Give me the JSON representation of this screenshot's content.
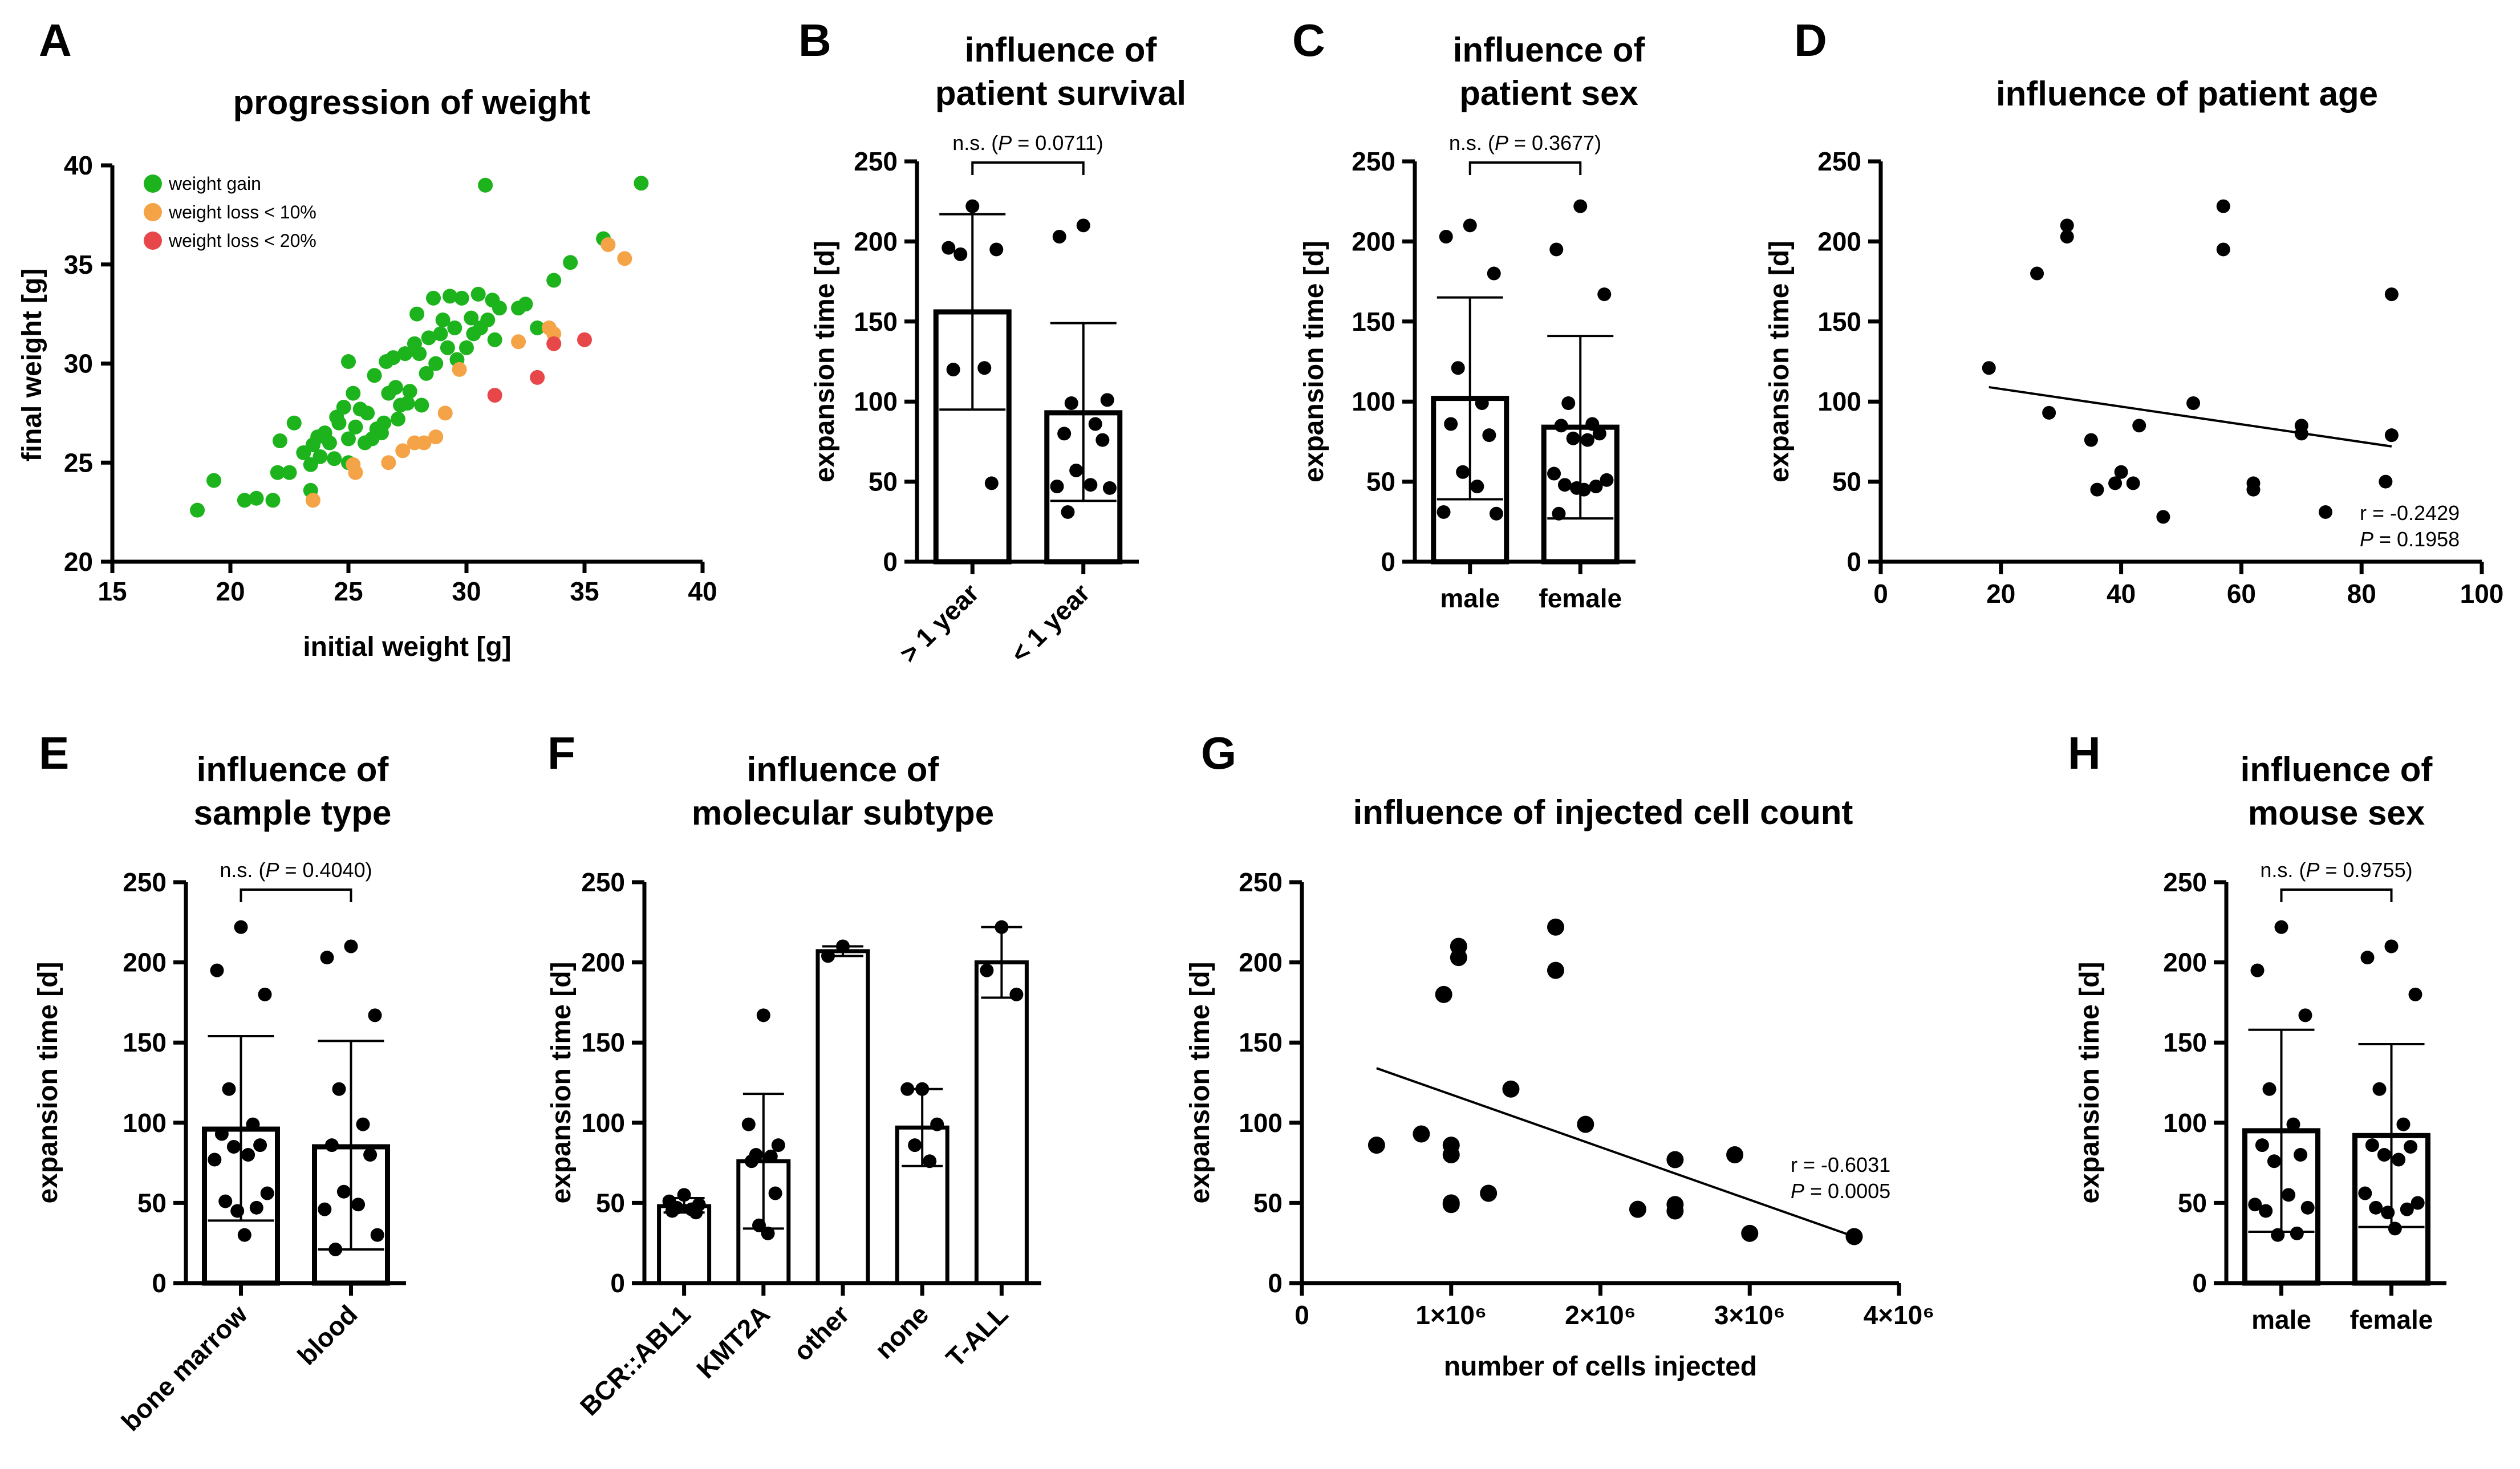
{
  "chart_data": [
    {
      "id": "A",
      "panel_label": "A",
      "type": "scatter",
      "title": "progression of weight",
      "xlabel": "initial weight [g]",
      "ylabel": "final weight [g]",
      "xlim": [
        15,
        40
      ],
      "ylim": [
        20,
        40
      ],
      "xticks": [
        15,
        20,
        25,
        30,
        35,
        40
      ],
      "yticks": [
        20,
        25,
        30,
        35,
        40
      ],
      "legend": [
        "weight gain",
        "weight loss < 10%",
        "weight loss < 20%"
      ],
      "colors": {
        "gain": "#1db31d",
        "loss10": "#f5a347",
        "loss20": "#e8474a"
      },
      "series": [
        {
          "name": "weight gain",
          "color": "#1db31d",
          "points": [
            [
              18.6,
              22.6
            ],
            [
              19.3,
              24.1
            ],
            [
              20.6,
              23.1
            ],
            [
              21.1,
              23.2
            ],
            [
              21.8,
              23.1
            ],
            [
              22.0,
              24.5
            ],
            [
              22.1,
              26.1
            ],
            [
              22.5,
              24.5
            ],
            [
              22.7,
              27.0
            ],
            [
              23.1,
              25.5
            ],
            [
              23.4,
              23.6
            ],
            [
              23.4,
              24.9
            ],
            [
              23.5,
              25.9
            ],
            [
              23.7,
              26.3
            ],
            [
              23.8,
              25.3
            ],
            [
              24.0,
              26.5
            ],
            [
              24.2,
              26.0
            ],
            [
              24.4,
              25.2
            ],
            [
              24.5,
              27.3
            ],
            [
              24.6,
              27.0
            ],
            [
              24.8,
              27.8
            ],
            [
              25.0,
              30.1
            ],
            [
              25.0,
              26.2
            ],
            [
              25.0,
              25.0
            ],
            [
              25.2,
              28.5
            ],
            [
              25.3,
              26.8
            ],
            [
              25.5,
              27.7
            ],
            [
              25.7,
              26.0
            ],
            [
              25.8,
              27.5
            ],
            [
              26.0,
              26.2
            ],
            [
              26.1,
              29.4
            ],
            [
              26.2,
              26.7
            ],
            [
              26.4,
              26.5
            ],
            [
              26.5,
              27.0
            ],
            [
              26.6,
              30.1
            ],
            [
              26.7,
              28.5
            ],
            [
              26.9,
              30.3
            ],
            [
              27.0,
              28.8
            ],
            [
              27.1,
              27.2
            ],
            [
              27.2,
              27.9
            ],
            [
              27.4,
              30.5
            ],
            [
              27.5,
              28.0
            ],
            [
              27.6,
              28.6
            ],
            [
              27.8,
              31.0
            ],
            [
              27.9,
              32.5
            ],
            [
              28.0,
              30.5
            ],
            [
              28.1,
              27.9
            ],
            [
              28.3,
              29.5
            ],
            [
              28.4,
              31.3
            ],
            [
              28.6,
              33.3
            ],
            [
              28.7,
              30.0
            ],
            [
              28.9,
              31.5
            ],
            [
              29.0,
              32.2
            ],
            [
              29.2,
              30.8
            ],
            [
              29.3,
              33.4
            ],
            [
              29.5,
              31.8
            ],
            [
              29.6,
              30.2
            ],
            [
              29.8,
              33.3
            ],
            [
              30.0,
              30.8
            ],
            [
              30.2,
              32.3
            ],
            [
              30.3,
              31.5
            ],
            [
              30.5,
              33.5
            ],
            [
              30.6,
              31.8
            ],
            [
              30.8,
              39.0
            ],
            [
              30.9,
              32.2
            ],
            [
              31.1,
              33.2
            ],
            [
              31.2,
              31.2
            ],
            [
              31.4,
              32.8
            ],
            [
              32.2,
              32.8
            ],
            [
              32.5,
              33.0
            ],
            [
              33.0,
              31.8
            ],
            [
              33.7,
              34.2
            ],
            [
              34.4,
              35.1
            ],
            [
              35.8,
              36.3
            ],
            [
              37.4,
              39.1
            ]
          ]
        },
        {
          "name": "weight loss < 10%",
          "color": "#f5a347",
          "points": [
            [
              23.5,
              23.1
            ],
            [
              25.2,
              24.9
            ],
            [
              25.3,
              24.5
            ],
            [
              26.7,
              25.0
            ],
            [
              27.3,
              25.6
            ],
            [
              27.8,
              26.0
            ],
            [
              28.2,
              26.0
            ],
            [
              28.7,
              26.3
            ],
            [
              29.1,
              27.5
            ],
            [
              29.7,
              29.7
            ],
            [
              32.2,
              31.1
            ],
            [
              33.5,
              31.8
            ],
            [
              33.7,
              31.5
            ],
            [
              36.0,
              36.0
            ],
            [
              36.7,
              35.3
            ]
          ]
        },
        {
          "name": "weight loss < 20%",
          "color": "#e8474a",
          "points": [
            [
              31.2,
              28.4
            ],
            [
              33.0,
              29.3
            ],
            [
              33.7,
              31.0
            ],
            [
              35.0,
              31.2
            ]
          ]
        }
      ]
    },
    {
      "id": "B",
      "panel_label": "B",
      "type": "bar",
      "title_lines": [
        "influence of",
        "patient survival"
      ],
      "ylabel": "expansion time [d]",
      "ylim": [
        0,
        250
      ],
      "yticks": [
        0,
        50,
        100,
        150,
        200,
        250
      ],
      "categories": [
        "> 1 year",
        "< 1 year"
      ],
      "rotate_labels": true,
      "means": [
        156,
        93
      ],
      "sd_upper": [
        217,
        149
      ],
      "sd_lower": [
        95,
        38
      ],
      "points": [
        [
          222,
          196,
          195,
          192,
          121,
          120,
          49
        ],
        [
          210,
          203,
          101,
          99,
          86,
          80,
          76,
          57,
          48,
          47,
          46,
          31
        ]
      ],
      "significance": {
        "ns": "n.s.",
        "p_label": "P",
        "p_value": "= 0.0711"
      }
    },
    {
      "id": "C",
      "panel_label": "C",
      "type": "bar",
      "title_lines": [
        "influence of",
        "patient sex"
      ],
      "ylabel": "expansion time [d]",
      "ylim": [
        0,
        250
      ],
      "yticks": [
        0,
        50,
        100,
        150,
        200,
        250
      ],
      "categories": [
        "male",
        "female"
      ],
      "rotate_labels": false,
      "means": [
        102,
        84
      ],
      "sd_upper": [
        165,
        141
      ],
      "sd_lower": [
        39,
        27
      ],
      "points": [
        [
          210,
          203,
          180,
          121,
          99,
          86,
          79,
          56,
          47,
          31,
          30
        ],
        [
          222,
          195,
          167,
          99,
          86,
          85,
          80,
          77,
          76,
          55,
          51,
          48,
          47,
          46,
          45,
          30
        ]
      ],
      "significance": {
        "ns": "n.s.",
        "p_label": "P",
        "p_value": "= 0.3677"
      }
    },
    {
      "id": "D",
      "panel_label": "D",
      "type": "scatter",
      "title": "influence of patient age",
      "xlabel": "",
      "ylabel": "expansion time [d]",
      "xlim": [
        0,
        100
      ],
      "ylim": [
        0,
        250
      ],
      "xticks": [
        0,
        20,
        40,
        60,
        80,
        100
      ],
      "yticks": [
        0,
        50,
        100,
        150,
        200,
        250
      ],
      "points": [
        [
          18,
          121
        ],
        [
          26,
          180
        ],
        [
          28,
          93
        ],
        [
          31,
          210
        ],
        [
          31,
          203
        ],
        [
          35,
          76
        ],
        [
          36,
          45
        ],
        [
          39,
          49
        ],
        [
          40,
          56
        ],
        [
          42,
          49
        ],
        [
          43,
          85
        ],
        [
          47,
          28
        ],
        [
          52,
          99
        ],
        [
          57,
          222
        ],
        [
          57,
          195
        ],
        [
          62,
          49
        ],
        [
          62,
          45
        ],
        [
          70,
          85
        ],
        [
          70,
          80
        ],
        [
          74,
          31
        ],
        [
          84,
          50
        ],
        [
          85,
          167
        ],
        [
          85,
          79
        ]
      ],
      "regression": {
        "x": [
          18,
          85
        ],
        "y": [
          109,
          72
        ]
      },
      "annotation": {
        "r": "r = -0.2429",
        "p_label": "P",
        "p_value": "= 0.1958"
      }
    },
    {
      "id": "E",
      "panel_label": "E",
      "type": "bar",
      "title_lines": [
        "influence of",
        "sample type"
      ],
      "ylabel": "expansion time [d]",
      "ylim": [
        0,
        250
      ],
      "yticks": [
        0,
        50,
        100,
        150,
        200,
        250
      ],
      "categories": [
        "bone marrow",
        "blood"
      ],
      "rotate_labels": true,
      "means": [
        96,
        85
      ],
      "sd_upper": [
        154,
        151
      ],
      "sd_lower": [
        39,
        21
      ],
      "points": [
        [
          222,
          195,
          180,
          121,
          99,
          93,
          86,
          85,
          80,
          77,
          56,
          51,
          47,
          45,
          30
        ],
        [
          210,
          203,
          167,
          121,
          99,
          86,
          80,
          57,
          49,
          46,
          30,
          21
        ]
      ],
      "significance": {
        "ns": "n.s.",
        "p_label": "P",
        "p_value": "= 0.4040"
      }
    },
    {
      "id": "F",
      "panel_label": "F",
      "type": "bar",
      "title_lines": [
        "influence of",
        "molecular subtype"
      ],
      "ylabel": "expansion time [d]",
      "ylim": [
        0,
        250
      ],
      "yticks": [
        0,
        50,
        100,
        150,
        200,
        250
      ],
      "categories": [
        "BCR::ABL1",
        "KMT2A",
        "other",
        "none",
        "T-ALL"
      ],
      "rotate_labels": true,
      "means": [
        48,
        76,
        207,
        97,
        200
      ],
      "sd_upper": [
        53,
        118,
        210,
        121,
        222
      ],
      "sd_lower": [
        44,
        34,
        204,
        73,
        178
      ],
      "points": [
        [
          55,
          51,
          49,
          47,
          46,
          45,
          44
        ],
        [
          167,
          99,
          86,
          80,
          79,
          76,
          56,
          36,
          31
        ],
        [
          210,
          204
        ],
        [
          121,
          121,
          99,
          86,
          76
        ],
        [
          222,
          195,
          180
        ]
      ]
    },
    {
      "id": "G",
      "panel_label": "G",
      "type": "scatter",
      "title": "influence of injected cell count",
      "xlabel": "number of cells injected",
      "ylabel": "expansion time [d]",
      "xlim": [
        0,
        4000000
      ],
      "ylim": [
        0,
        250
      ],
      "xticks": [
        0,
        1000000,
        2000000,
        3000000,
        4000000
      ],
      "xtick_labels": [
        "0",
        "1×10⁶",
        "2×10⁶",
        "3×10⁶",
        "4×10⁶"
      ],
      "yticks": [
        0,
        50,
        100,
        150,
        200,
        250
      ],
      "points": [
        [
          500000,
          86
        ],
        [
          800000,
          93
        ],
        [
          950000,
          180
        ],
        [
          1000000,
          86
        ],
        [
          1000000,
          80
        ],
        [
          1000000,
          50
        ],
        [
          1000000,
          49
        ],
        [
          1050000,
          210
        ],
        [
          1050000,
          203
        ],
        [
          1250000,
          56
        ],
        [
          1400000,
          121
        ],
        [
          1700000,
          222
        ],
        [
          1700000,
          195
        ],
        [
          1900000,
          99
        ],
        [
          2250000,
          46
        ],
        [
          2500000,
          77
        ],
        [
          2500000,
          49
        ],
        [
          2500000,
          45
        ],
        [
          2900000,
          80
        ],
        [
          3000000,
          31
        ],
        [
          3700000,
          29
        ]
      ],
      "regression": {
        "x": [
          500000,
          3700000
        ],
        "y": [
          134,
          29
        ]
      },
      "annotation": {
        "r": "r = -0.6031",
        "p_label": "P",
        "p_value": "= 0.0005"
      }
    },
    {
      "id": "H",
      "panel_label": "H",
      "type": "bar",
      "title_lines": [
        "influence of",
        "mouse sex"
      ],
      "ylabel": "expansion time [d]",
      "ylim": [
        0,
        250
      ],
      "yticks": [
        0,
        50,
        100,
        150,
        200,
        250
      ],
      "categories": [
        "male",
        "female"
      ],
      "rotate_labels": false,
      "means": [
        95,
        92
      ],
      "sd_upper": [
        158,
        149
      ],
      "sd_lower": [
        32,
        35
      ],
      "points": [
        [
          222,
          195,
          167,
          121,
          99,
          86,
          80,
          76,
          55,
          49,
          47,
          45,
          31,
          30
        ],
        [
          210,
          203,
          180,
          121,
          99,
          86,
          85,
          80,
          77,
          56,
          50,
          47,
          46,
          44,
          34
        ]
      ],
      "significance": {
        "ns": "n.s.",
        "p_label": "P",
        "p_value": "= 0.9755"
      }
    }
  ]
}
